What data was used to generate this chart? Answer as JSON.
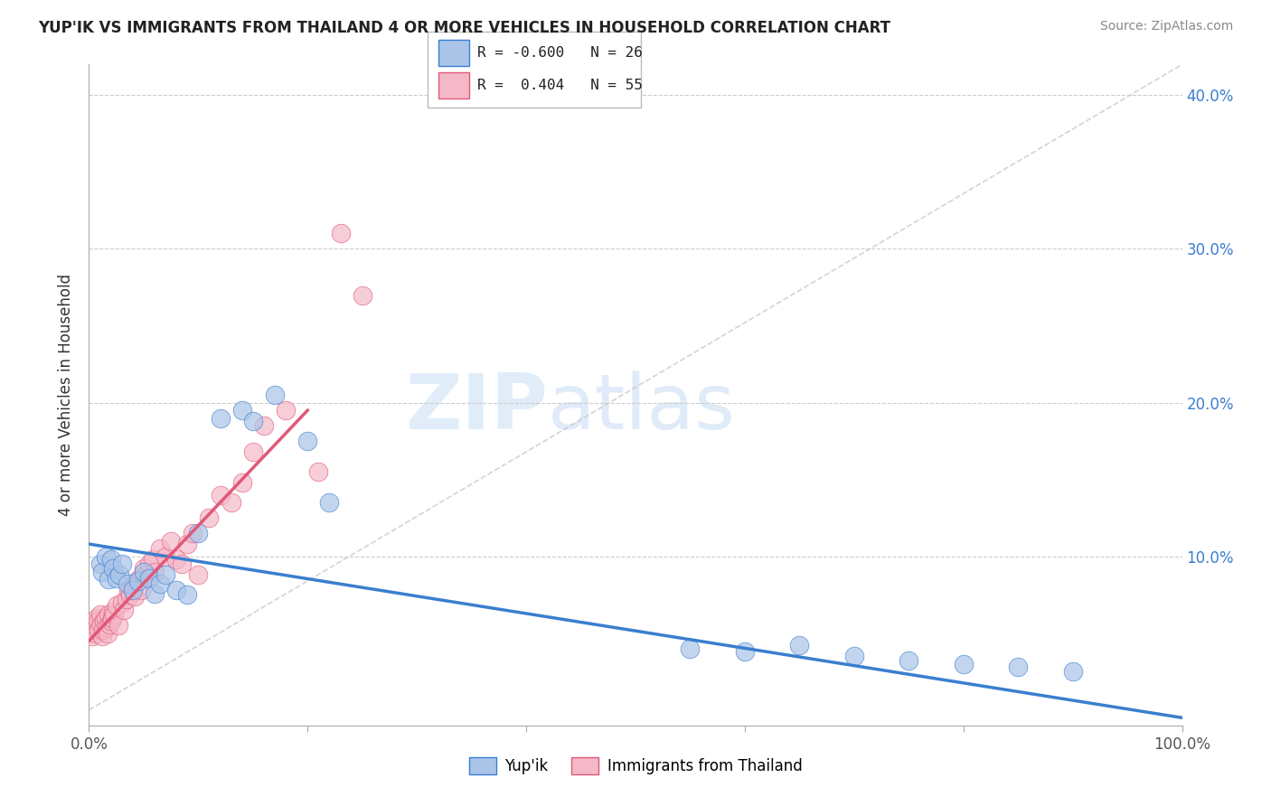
{
  "title": "YUP'IK VS IMMIGRANTS FROM THAILAND 4 OR MORE VEHICLES IN HOUSEHOLD CORRELATION CHART",
  "source": "Source: ZipAtlas.com",
  "ylabel": "4 or more Vehicles in Household",
  "xmin": 0.0,
  "xmax": 1.0,
  "ymin": -0.01,
  "ymax": 0.42,
  "color_blue": "#aac4e8",
  "color_pink": "#f5b8c8",
  "line_blue": "#3a7ecf",
  "line_pink": "#e05878",
  "watermark_zip": "ZIP",
  "watermark_atlas": "atlas",
  "blue_scatter_x": [
    0.01,
    0.012,
    0.015,
    0.018,
    0.02,
    0.022,
    0.025,
    0.028,
    0.03,
    0.035,
    0.04,
    0.045,
    0.05,
    0.055,
    0.06,
    0.065,
    0.07,
    0.08,
    0.09,
    0.1,
    0.12,
    0.14,
    0.15,
    0.17,
    0.2,
    0.22,
    0.55,
    0.6,
    0.65,
    0.7,
    0.75,
    0.8,
    0.85,
    0.9
  ],
  "blue_scatter_y": [
    0.095,
    0.09,
    0.1,
    0.085,
    0.098,
    0.092,
    0.086,
    0.088,
    0.095,
    0.082,
    0.078,
    0.084,
    0.09,
    0.086,
    0.076,
    0.082,
    0.088,
    0.078,
    0.075,
    0.115,
    0.19,
    0.195,
    0.188,
    0.205,
    0.175,
    0.135,
    0.04,
    0.038,
    0.042,
    0.035,
    0.032,
    0.03,
    0.028,
    0.025
  ],
  "pink_scatter_x": [
    0.003,
    0.004,
    0.005,
    0.006,
    0.007,
    0.008,
    0.009,
    0.01,
    0.011,
    0.012,
    0.013,
    0.014,
    0.015,
    0.016,
    0.017,
    0.018,
    0.019,
    0.02,
    0.021,
    0.022,
    0.023,
    0.025,
    0.027,
    0.03,
    0.032,
    0.034,
    0.036,
    0.038,
    0.04,
    0.042,
    0.045,
    0.048,
    0.05,
    0.052,
    0.055,
    0.058,
    0.06,
    0.065,
    0.07,
    0.075,
    0.08,
    0.085,
    0.09,
    0.095,
    0.1,
    0.11,
    0.12,
    0.13,
    0.14,
    0.15,
    0.16,
    0.18,
    0.21,
    0.23,
    0.25
  ],
  "pink_scatter_y": [
    0.048,
    0.052,
    0.055,
    0.05,
    0.06,
    0.058,
    0.052,
    0.062,
    0.056,
    0.048,
    0.052,
    0.058,
    0.06,
    0.054,
    0.05,
    0.062,
    0.056,
    0.058,
    0.06,
    0.064,
    0.062,
    0.068,
    0.055,
    0.07,
    0.065,
    0.072,
    0.078,
    0.075,
    0.08,
    0.074,
    0.085,
    0.078,
    0.092,
    0.088,
    0.095,
    0.098,
    0.09,
    0.105,
    0.1,
    0.11,
    0.098,
    0.095,
    0.108,
    0.115,
    0.088,
    0.125,
    0.14,
    0.135,
    0.148,
    0.168,
    0.185,
    0.195,
    0.155,
    0.31,
    0.27
  ],
  "blue_line_x0": 0.0,
  "blue_line_y0": 0.108,
  "blue_line_x1": 1.0,
  "blue_line_y1": -0.005,
  "pink_line_x0": 0.0,
  "pink_line_y0": 0.045,
  "pink_line_x1": 0.2,
  "pink_line_y1": 0.195,
  "ref_line_x0": 0.0,
  "ref_line_y0": 0.0,
  "ref_line_x1": 1.0,
  "ref_line_y1": 0.42
}
